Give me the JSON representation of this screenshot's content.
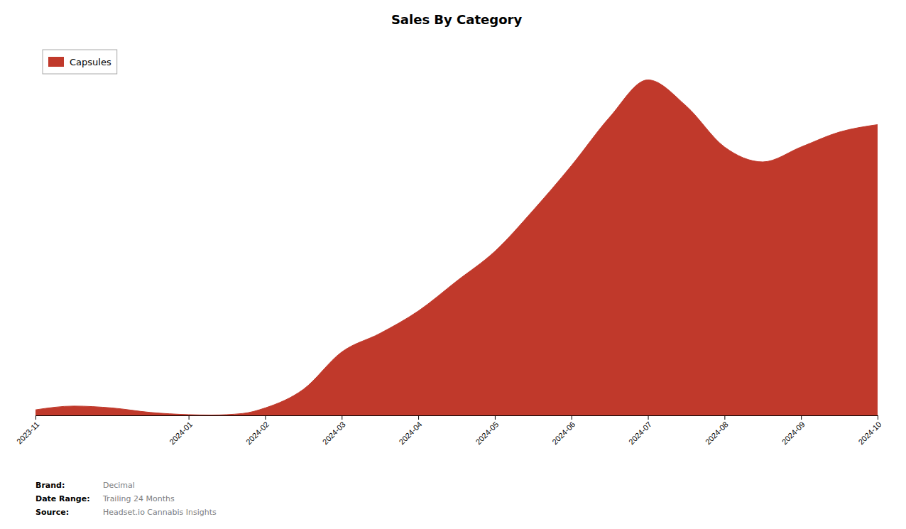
{
  "chart_data": {
    "type": "area",
    "title": "Sales By Category",
    "x": [
      0,
      0.5,
      1.0,
      1.5,
      2.0,
      2.3,
      2.7,
      3.0,
      3.5,
      4.0,
      4.5,
      5.0,
      5.5,
      6.0,
      6.5,
      7.0,
      7.5,
      8.0,
      8.5,
      9.0,
      9.5,
      10.0,
      10.5,
      11.0
    ],
    "series": [
      {
        "name": "Capsules",
        "color": "#C0392B",
        "values": [
          1.5,
          2.5,
          2.0,
          0.8,
          0.2,
          0.1,
          0.5,
          2.0,
          7.0,
          17.0,
          22.0,
          28.0,
          36.0,
          44.0,
          55.0,
          67.0,
          80.0,
          90.0,
          83.0,
          72.0,
          68.0,
          72.0,
          76.0,
          78.0
        ]
      }
    ],
    "xlim": [
      0,
      11
    ],
    "xticks": [
      {
        "value": 0,
        "label": "2023-11"
      },
      {
        "value": 2,
        "label": "2024-01"
      },
      {
        "value": 3,
        "label": "2024-02"
      },
      {
        "value": 4,
        "label": "2024-03"
      },
      {
        "value": 5,
        "label": "2024-04"
      },
      {
        "value": 6,
        "label": "2024-05"
      },
      {
        "value": 7,
        "label": "2024-06"
      },
      {
        "value": 8,
        "label": "2024-07"
      },
      {
        "value": 9,
        "label": "2024-08"
      },
      {
        "value": 10,
        "label": "2024-09"
      },
      {
        "value": 11,
        "label": "2024-10"
      }
    ],
    "ylim": [
      0,
      100
    ],
    "tick_labels": "x",
    "grid": false,
    "legend": "top-left",
    "annotations": [
      {
        "label": "Brand:",
        "text": "Decimal"
      },
      {
        "label": "Date Range:",
        "text": "Trailing 24 Months"
      },
      {
        "label": "Source:",
        "text": "Headset.io Cannabis Insights"
      }
    ]
  }
}
